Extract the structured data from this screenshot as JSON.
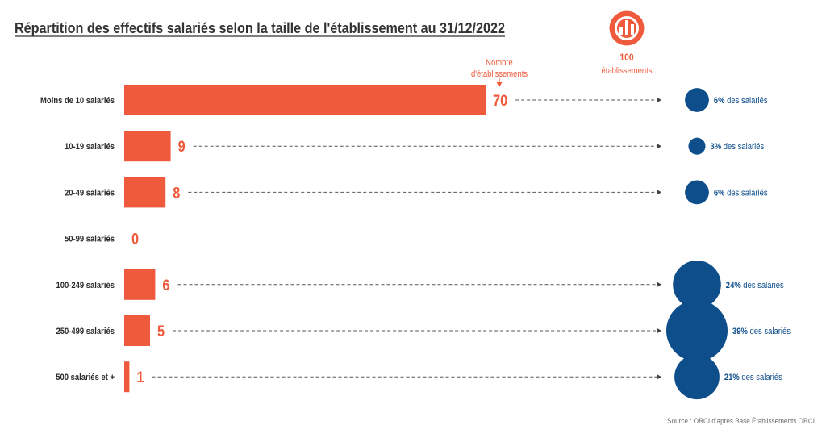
{
  "colors": {
    "accent": "#f05a3c",
    "text": "#333333",
    "source": "#6b6b6b"
  },
  "key": {
    "icon": "building-chart-icon",
    "value": "100",
    "label": "établissements"
  },
  "annotation": {
    "line1": "Nombre",
    "line2": "d'établissements",
    "icon": "arrow-down-icon"
  },
  "source": "Source : ORCI d'après Base Établissements ORCI",
  "chart_data": {
    "type": "bar",
    "orientation": "horizontal",
    "title": "Répartition des effectifs salariés selon la taille de l'établissement au 31/12/2022",
    "categories": [
      "Moins de 10 salariés",
      "10-19 salariés",
      "20-49 salariés",
      "50-99 salariés",
      "100-249 salariés",
      "250-499 salariés",
      "500 salariés et +"
    ],
    "series": [
      {
        "values": [
          70,
          9,
          8,
          0,
          6,
          5,
          1
        ],
        "color": "#f05a3c"
      },
      {
        "mark": "bubble",
        "values": [
          6,
          3,
          6,
          null,
          24,
          39,
          21
        ],
        "unit": "%",
        "labels": [
          "6%",
          "3%",
          "6%",
          null,
          "24%",
          "39%",
          "21%"
        ],
        "suffix": "des salariés",
        "color": "#0e4e8b"
      }
    ],
    "grid": false,
    "legend": "none"
  }
}
